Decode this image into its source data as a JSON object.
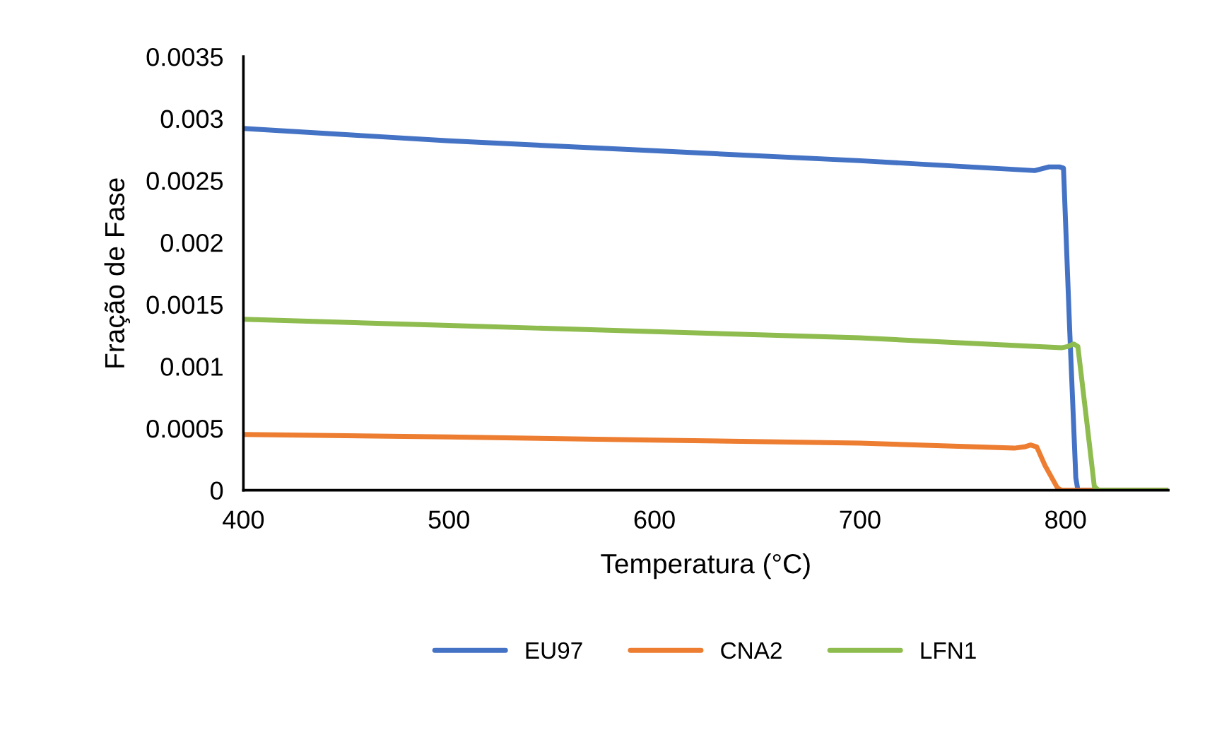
{
  "chart_data": {
    "type": "line",
    "xlabel": "Temperatura (°C)",
    "ylabel": "Fração de Fase",
    "xlim": [
      400,
      850
    ],
    "xticks": [
      400,
      500,
      600,
      700,
      800
    ],
    "ylim": [
      0,
      0.0035
    ],
    "yticks": [
      0,
      0.0005,
      0.001,
      0.0015,
      0.002,
      0.0025,
      0.003,
      0.0035
    ],
    "grid": false,
    "legend": "bottom",
    "marker": "none",
    "line_style": "solid",
    "series": [
      {
        "name": "EU97",
        "color": "#4472c4",
        "x": [
          400,
          500,
          600,
          700,
          785,
          792,
          797,
          799,
          802,
          805,
          806,
          850
        ],
        "values": [
          0.00292,
          0.00282,
          0.00274,
          0.00266,
          0.00258,
          0.00261,
          0.00261,
          0.0026,
          0.0013,
          0.0001,
          0,
          0
        ]
      },
      {
        "name": "CNA2",
        "color": "#ed7d31",
        "x": [
          400,
          500,
          600,
          700,
          775,
          780,
          783,
          786,
          790,
          796,
          798,
          850
        ],
        "values": [
          0.00045,
          0.00043,
          0.000405,
          0.00038,
          0.00034,
          0.00035,
          0.000365,
          0.00035,
          0.0002,
          2e-05,
          0,
          0
        ]
      },
      {
        "name": "LFN1",
        "color": "#8fbc4f",
        "x": [
          400,
          500,
          600,
          700,
          798,
          801,
          804,
          806,
          810,
          814,
          816,
          850
        ],
        "values": [
          0.00138,
          0.00133,
          0.00128,
          0.00123,
          0.00115,
          0.00116,
          0.00118,
          0.00116,
          0.0006,
          3e-05,
          0,
          0
        ]
      }
    ]
  }
}
